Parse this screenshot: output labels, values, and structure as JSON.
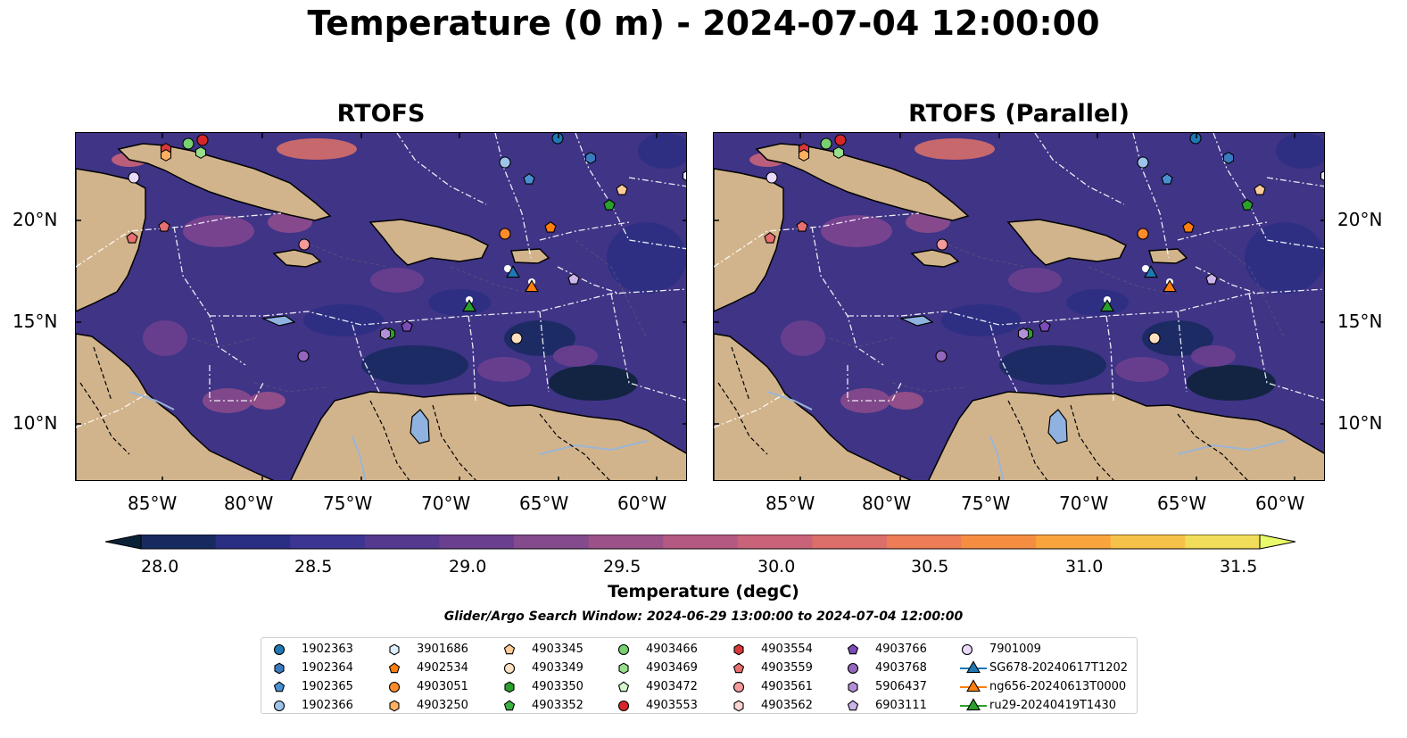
{
  "title": "Temperature (0 m) - 2024-07-04 12:00:00",
  "panels": [
    {
      "title": "RTOFS"
    },
    {
      "title": "RTOFS (Parallel)"
    }
  ],
  "axes": {
    "lat_ticks": [
      "20°N",
      "15°N",
      "10°N"
    ],
    "lon_ticks": [
      "85°W",
      "80°W",
      "75°W",
      "70°W",
      "65°W",
      "60°W"
    ]
  },
  "colorbar": {
    "label": "Temperature (degC)",
    "ticks": [
      "28.0",
      "28.5",
      "29.0",
      "29.5",
      "30.0",
      "30.5",
      "31.0",
      "31.5"
    ],
    "range": [
      28.0,
      31.5
    ],
    "extend": "both",
    "colors": [
      "#0a2236",
      "#172a5f",
      "#2b2f83",
      "#3d3592",
      "#55398f",
      "#6b3f8f",
      "#834a8c",
      "#9b5288",
      "#b45a82",
      "#c9637a",
      "#dc6f6a",
      "#ec7d56",
      "#f68e42",
      "#f9a53e",
      "#f7c24a",
      "#f1dd5a",
      "#e8fa6a"
    ]
  },
  "search_window": "Glider/Argo Search Window: 2024-06-29 13:00:00 to 2024-07-04 12:00:00",
  "legend": [
    {
      "label": "1902363",
      "marker": "circle",
      "color": "#1f77b4"
    },
    {
      "label": "1902364",
      "marker": "hexagon",
      "color": "#3a7bbf"
    },
    {
      "label": "1902365",
      "marker": "pentagon",
      "color": "#4a8fd2"
    },
    {
      "label": "1902366",
      "marker": "circle",
      "color": "#9ec4ea"
    },
    {
      "label": "3901686",
      "marker": "hexagon",
      "color": "#ddeeff"
    },
    {
      "label": "4902534",
      "marker": "pentagon",
      "color": "#ff7f0e"
    },
    {
      "label": "4903051",
      "marker": "circle",
      "color": "#ff8c2a"
    },
    {
      "label": "4903250",
      "marker": "hexagon",
      "color": "#ffb061"
    },
    {
      "label": "4903345",
      "marker": "pentagon",
      "color": "#ffcc99"
    },
    {
      "label": "4903349",
      "marker": "circle",
      "color": "#ffe0c0"
    },
    {
      "label": "4903350",
      "marker": "hexagon",
      "color": "#2ca02c"
    },
    {
      "label": "4903352",
      "marker": "pentagon",
      "color": "#3cb043"
    },
    {
      "label": "4903466",
      "marker": "circle",
      "color": "#77d16f"
    },
    {
      "label": "4903469",
      "marker": "hexagon",
      "color": "#98df8a"
    },
    {
      "label": "4903472",
      "marker": "pentagon",
      "color": "#d4f7cc"
    },
    {
      "label": "4903553",
      "marker": "circle",
      "color": "#d62728"
    },
    {
      "label": "4903554",
      "marker": "hexagon",
      "color": "#d93838"
    },
    {
      "label": "4903559",
      "marker": "pentagon",
      "color": "#e76f6f"
    },
    {
      "label": "4903561",
      "marker": "circle",
      "color": "#f49a9a"
    },
    {
      "label": "4903562",
      "marker": "hexagon",
      "color": "#fcd3d3"
    },
    {
      "label": "4903766",
      "marker": "pentagon",
      "color": "#7b4bb8"
    },
    {
      "label": "4903768",
      "marker": "circle",
      "color": "#9467bd"
    },
    {
      "label": "5906437",
      "marker": "hexagon",
      "color": "#b290d8"
    },
    {
      "label": "6903111",
      "marker": "pentagon",
      "color": "#cdb5ec"
    },
    {
      "label": "7901009",
      "marker": "circle",
      "color": "#e9d9fa"
    },
    {
      "label": "SG678-20240617T1202",
      "marker": "triangle-line",
      "color": "#1f77b4"
    },
    {
      "label": "ng656-20240613T0000",
      "marker": "triangle-line",
      "color": "#ff7f0e"
    },
    {
      "label": "ru29-20240419T1430",
      "marker": "triangle-line",
      "color": "#2ca02c"
    }
  ],
  "colors": {
    "land": "#d2b48c",
    "lake": "#8fb2e0",
    "ocean_base": "#3f3486",
    "eez_lines": "#ffffff",
    "rivers": "#9bb5d6"
  }
}
